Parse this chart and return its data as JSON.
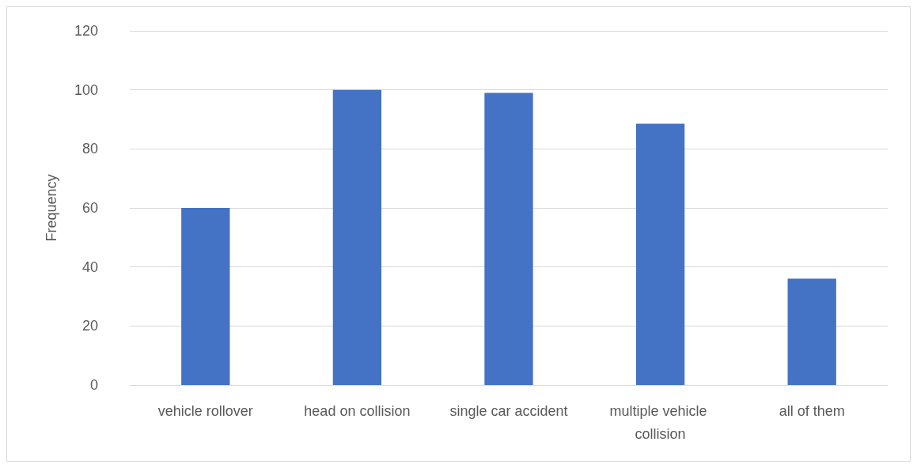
{
  "chart_data": {
    "type": "bar",
    "ylabel": "Frequency",
    "categories": [
      "vehicle rollover",
      "head on collision",
      "single car accident",
      "multiple vehicle collision",
      "all of them"
    ],
    "values": [
      60,
      100,
      99,
      88.5,
      36
    ],
    "color": "#4472c4",
    "ylim": [
      0,
      120
    ],
    "yticks": [
      0,
      20,
      40,
      60,
      80,
      100,
      120
    ],
    "grid": "y"
  }
}
